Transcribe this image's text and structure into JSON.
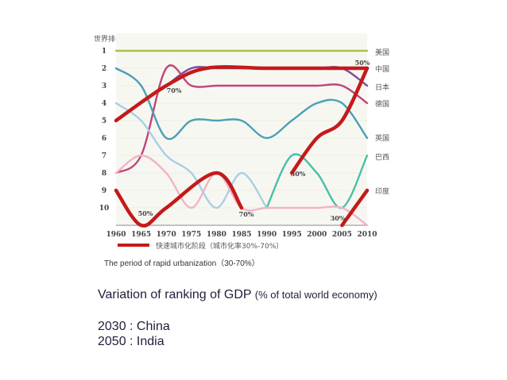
{
  "chart_data": {
    "type": "line",
    "y_axis_title": "世界排名",
    "x": [
      1960,
      1965,
      1970,
      1975,
      1980,
      1985,
      1990,
      1995,
      2000,
      2005,
      2010
    ],
    "y_ticks": [
      1,
      2,
      3,
      4,
      5,
      6,
      7,
      8,
      9,
      10
    ],
    "ylim": [
      1,
      10
    ],
    "y_inverted": true,
    "series": [
      {
        "name": "美国",
        "color": "#a6c34c",
        "values": [
          1,
          1,
          1,
          1,
          1,
          1,
          1,
          1,
          1,
          1,
          1
        ]
      },
      {
        "name": "中国",
        "color": "#7a4e9e",
        "values": [
          null,
          null,
          3,
          2,
          2,
          2,
          2,
          2,
          2,
          2,
          3
        ]
      },
      {
        "name": "日本",
        "color": "#c0457a",
        "values": [
          8,
          7,
          2,
          3,
          3,
          3,
          3,
          3,
          3,
          3,
          4
        ]
      },
      {
        "name": "德国",
        "color": "#4aa0b5",
        "values": [
          2,
          3,
          6,
          5,
          5,
          5,
          6,
          5,
          4,
          4,
          6
        ]
      },
      {
        "name": "英国",
        "color": "#a9cfe3",
        "values": [
          4,
          5,
          7,
          8,
          10,
          8,
          10,
          null,
          null,
          null,
          null
        ]
      },
      {
        "name": "巴西",
        "color": "#48c0a8",
        "values": [
          null,
          null,
          null,
          null,
          null,
          null,
          10,
          7,
          8,
          10,
          7
        ]
      },
      {
        "name": "印度",
        "color": "#f2b3c6",
        "values": [
          8,
          7,
          8,
          10,
          8,
          10,
          10,
          10,
          10,
          10,
          11
        ]
      }
    ],
    "rapid_urbanization": [
      {
        "color": "#c41a1a",
        "points": [
          [
            1960,
            5
          ],
          [
            1970,
            3
          ],
          [
            1978,
            2
          ],
          [
            1990,
            2
          ],
          [
            2000,
            2
          ],
          [
            2010,
            2
          ]
        ]
      },
      {
        "color": "#c41a1a",
        "points": [
          [
            1960,
            9
          ],
          [
            1965,
            11
          ],
          [
            1970,
            10
          ],
          [
            1980,
            8
          ],
          [
            1985,
            10
          ]
        ]
      },
      {
        "color": "#c41a1a",
        "points": [
          [
            1995,
            8
          ],
          [
            2000,
            6
          ],
          [
            2005,
            5
          ],
          [
            2010,
            2
          ]
        ]
      },
      {
        "color": "#c41a1a",
        "points": [
          [
            2005,
            11
          ],
          [
            2010,
            9
          ]
        ]
      }
    ],
    "annotations": [
      "70%",
      "50%",
      "30%",
      "70%",
      "50%",
      "30%"
    ],
    "legend_text": "快速城市化阶段（城市化率30%-70%）"
  },
  "caption": "The period of rapid urbanization（30-70%）",
  "headline_main": "Variation of ranking of GDP",
  "headline_small": "(% of total world economy)",
  "projections": [
    "2030 : China",
    "2050 : India"
  ]
}
